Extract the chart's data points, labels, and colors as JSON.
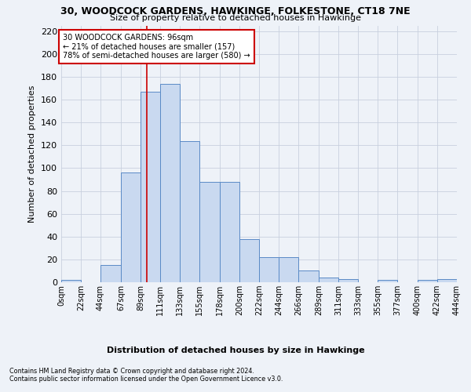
{
  "title": "30, WOODCOCK GARDENS, HAWKINGE, FOLKESTONE, CT18 7NE",
  "subtitle": "Size of property relative to detached houses in Hawkinge",
  "xlabel": "Distribution of detached houses by size in Hawkinge",
  "ylabel": "Number of detached properties",
  "bar_counts": [
    2,
    0,
    15,
    96,
    167,
    174,
    124,
    88,
    88,
    38,
    22,
    22,
    10,
    4,
    3,
    0,
    2,
    0,
    2,
    3
  ],
  "bin_edges": [
    0,
    22,
    44,
    67,
    89,
    111,
    133,
    155,
    178,
    200,
    222,
    244,
    266,
    289,
    311,
    333,
    355,
    377,
    400,
    422,
    444
  ],
  "tick_labels": [
    "0sqm",
    "22sqm",
    "44sqm",
    "67sqm",
    "89sqm",
    "111sqm",
    "133sqm",
    "155sqm",
    "178sqm",
    "200sqm",
    "222sqm",
    "244sqm",
    "266sqm",
    "289sqm",
    "311sqm",
    "333sqm",
    "355sqm",
    "377sqm",
    "400sqm",
    "422sqm",
    "444sqm"
  ],
  "bar_color": "#c9d9f0",
  "bar_edge_color": "#5a8ac6",
  "marker_value": 96,
  "marker_color": "#cc0000",
  "ylim": [
    0,
    225
  ],
  "yticks": [
    0,
    20,
    40,
    60,
    80,
    100,
    120,
    140,
    160,
    180,
    200,
    220
  ],
  "annotation_text": "30 WOODCOCK GARDENS: 96sqm\n← 21% of detached houses are smaller (157)\n78% of semi-detached houses are larger (580) →",
  "footnote1": "Contains HM Land Registry data © Crown copyright and database right 2024.",
  "footnote2": "Contains public sector information licensed under the Open Government Licence v3.0.",
  "background_color": "#eef2f8",
  "grid_color": "#c8d0de"
}
